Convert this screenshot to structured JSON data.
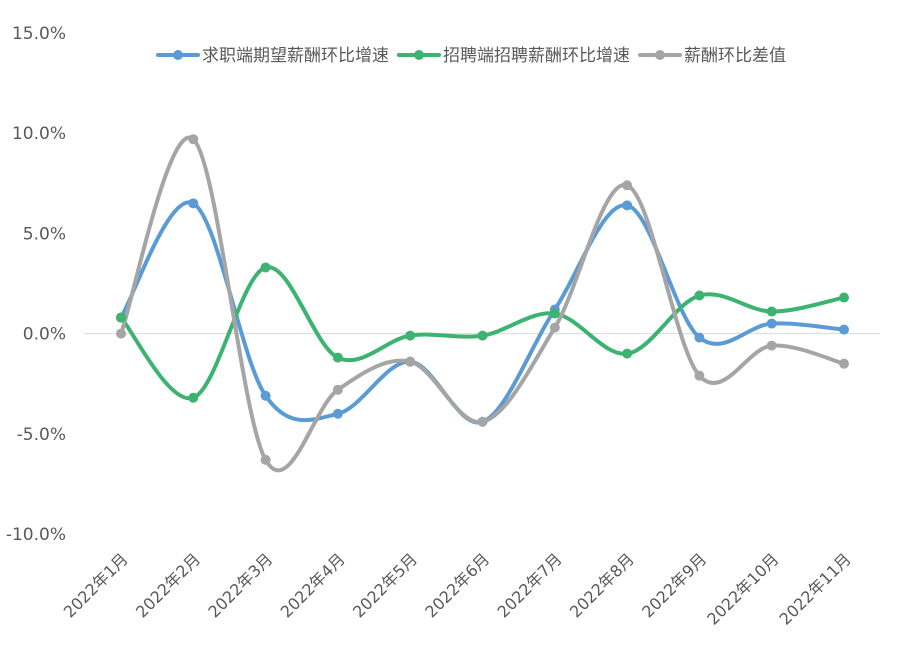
{
  "chart_data": {
    "type": "line",
    "smooth": true,
    "title": "",
    "xlabel": "",
    "ylabel": "",
    "categories": [
      "2022年1月",
      "2022年2月",
      "2022年3月",
      "2022年4月",
      "2022年5月",
      "2022年6月",
      "2022年7月",
      "2022年8月",
      "2022年9月",
      "2022年10月",
      "2022年11月"
    ],
    "y_ticks": [
      "-10.0%",
      "-5.0%",
      "0.0%",
      "5.0%",
      "10.0%",
      "15.0%"
    ],
    "ylim": [
      -10,
      15
    ],
    "y_unit": "%",
    "grid": false,
    "zero_line": true,
    "legend_position": "top",
    "series": [
      {
        "name": "求职端期望薪酬环比增速",
        "color": "#5B9BD5",
        "values": [
          0.8,
          6.5,
          -3.1,
          -4.0,
          -1.4,
          -4.4,
          1.2,
          6.4,
          -0.2,
          0.5,
          0.2
        ]
      },
      {
        "name": "招聘端招聘薪酬环比增速",
        "color": "#3CB371",
        "values": [
          0.8,
          -3.2,
          3.3,
          -1.2,
          -0.1,
          -0.1,
          1.0,
          -1.0,
          1.9,
          1.1,
          1.8
        ]
      },
      {
        "name": "薪酬环比差值",
        "color": "#A5A5A5",
        "values": [
          0.0,
          9.7,
          -6.3,
          -2.8,
          -1.4,
          -4.4,
          0.3,
          7.4,
          -2.1,
          -0.6,
          -1.5
        ]
      }
    ]
  }
}
